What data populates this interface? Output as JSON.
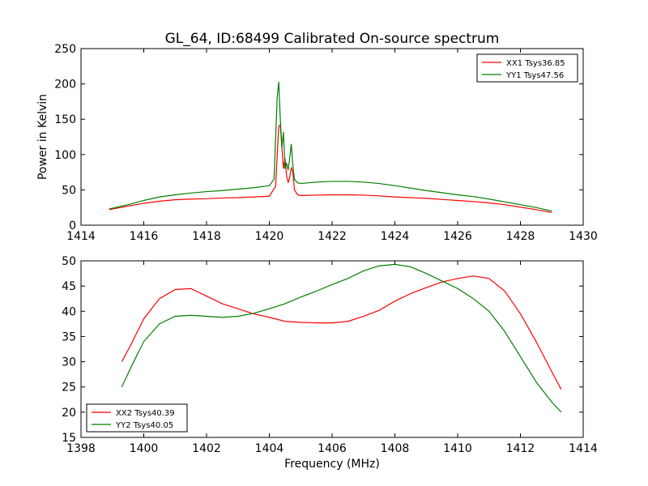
{
  "chart_data": [
    {
      "type": "line",
      "title": "GL_64, ID:68499 Calibrated On-source spectrum",
      "xlabel": "",
      "ylabel": "Power in Kelvin",
      "xlim": [
        1414,
        1430
      ],
      "ylim": [
        0,
        250
      ],
      "xticks": [
        1414,
        1416,
        1418,
        1420,
        1422,
        1424,
        1426,
        1428,
        1430
      ],
      "yticks": [
        0,
        50,
        100,
        150,
        200,
        250
      ],
      "grid": false,
      "legend_position": "top-right",
      "series": [
        {
          "name": "XX1 Tsys36.85",
          "color": "#ff0000",
          "x": [
            1414.9,
            1415.5,
            1416.0,
            1416.5,
            1417.0,
            1417.5,
            1418.0,
            1418.5,
            1419.0,
            1419.5,
            1420.0,
            1420.2,
            1420.3,
            1420.35,
            1420.4,
            1420.45,
            1420.5,
            1420.55,
            1420.6,
            1420.65,
            1420.7,
            1420.75,
            1420.8,
            1420.9,
            1421.0,
            1421.5,
            1422.0,
            1422.5,
            1423.0,
            1423.5,
            1424.0,
            1424.5,
            1425.0,
            1425.5,
            1426.0,
            1426.5,
            1427.0,
            1427.5,
            1428.0,
            1428.5,
            1429.0
          ],
          "y": [
            22,
            27,
            31,
            34,
            36,
            37,
            37.5,
            38.5,
            39,
            40,
            41,
            55,
            140,
            142,
            110,
            80,
            95,
            70,
            60,
            68,
            82,
            75,
            50,
            43,
            42,
            42.5,
            43,
            43,
            42.5,
            41.5,
            40,
            39,
            38,
            36.5,
            35,
            33.5,
            31.5,
            29,
            25.5,
            22,
            18
          ]
        },
        {
          "name": "YY1 Tsys47.56",
          "color": "#007f00",
          "x": [
            1414.9,
            1415.5,
            1416.0,
            1416.5,
            1417.0,
            1417.5,
            1418.0,
            1418.5,
            1419.0,
            1419.5,
            1420.0,
            1420.15,
            1420.25,
            1420.3,
            1420.35,
            1420.4,
            1420.45,
            1420.5,
            1420.55,
            1420.6,
            1420.65,
            1420.7,
            1420.75,
            1420.8,
            1420.9,
            1421.0,
            1421.5,
            1422.0,
            1422.5,
            1423.0,
            1423.5,
            1424.0,
            1424.5,
            1425.0,
            1425.5,
            1426.0,
            1426.5,
            1427.0,
            1427.5,
            1428.0,
            1428.5,
            1429.0
          ],
          "y": [
            23,
            29,
            35,
            40,
            43,
            45.5,
            47.5,
            49,
            51,
            53,
            56,
            65,
            180,
            203,
            150,
            110,
            132,
            80,
            88,
            78,
            95,
            115,
            85,
            65,
            60,
            59,
            61,
            62,
            62,
            61,
            59,
            56,
            52.5,
            49,
            46,
            43,
            40.5,
            37,
            33,
            29,
            25,
            20
          ]
        }
      ]
    },
    {
      "type": "line",
      "title": "",
      "xlabel": "Frequency (MHz)",
      "ylabel": "",
      "xlim": [
        1398,
        1414
      ],
      "ylim": [
        15,
        50
      ],
      "xticks": [
        1398,
        1400,
        1402,
        1404,
        1406,
        1408,
        1410,
        1412,
        1414
      ],
      "yticks": [
        15,
        20,
        25,
        30,
        35,
        40,
        45,
        50
      ],
      "grid": false,
      "legend_position": "bottom-left",
      "series": [
        {
          "name": "XX2 Tsys40.39",
          "color": "#ff0000",
          "x": [
            1399.3,
            1399.6,
            1400.0,
            1400.5,
            1401.0,
            1401.5,
            1402.0,
            1402.5,
            1403.0,
            1403.5,
            1404.0,
            1404.5,
            1405.0,
            1405.5,
            1406.0,
            1406.5,
            1407.0,
            1407.5,
            1408.0,
            1408.5,
            1409.0,
            1409.5,
            1410.0,
            1410.5,
            1411.0,
            1411.5,
            1412.0,
            1412.5,
            1413.0,
            1413.3
          ],
          "y": [
            30,
            33.5,
            38.5,
            42.5,
            44.3,
            44.5,
            43,
            41.5,
            40.5,
            39.5,
            38.8,
            38,
            37.8,
            37.7,
            37.7,
            38,
            39,
            40.2,
            42,
            43.5,
            44.7,
            45.8,
            46.5,
            47,
            46.5,
            44,
            39.5,
            34,
            28,
            24.5
          ]
        },
        {
          "name": "YY2 Tsys40.05",
          "color": "#007f00",
          "x": [
            1399.3,
            1399.6,
            1400.0,
            1400.5,
            1401.0,
            1401.5,
            1402.0,
            1402.5,
            1403.0,
            1403.5,
            1404.0,
            1404.5,
            1405.0,
            1405.5,
            1406.0,
            1406.5,
            1407.0,
            1407.5,
            1408.0,
            1408.5,
            1409.0,
            1409.5,
            1410.0,
            1410.5,
            1411.0,
            1411.5,
            1412.0,
            1412.5,
            1413.0,
            1413.3
          ],
          "y": [
            25,
            29,
            34,
            37.5,
            39,
            39.2,
            39,
            38.8,
            39,
            39.6,
            40.5,
            41.5,
            42.8,
            44,
            45.3,
            46.5,
            48,
            49,
            49.3,
            48.8,
            47.5,
            46,
            44.5,
            42.5,
            40,
            36,
            31,
            26,
            22,
            20
          ]
        }
      ]
    }
  ]
}
